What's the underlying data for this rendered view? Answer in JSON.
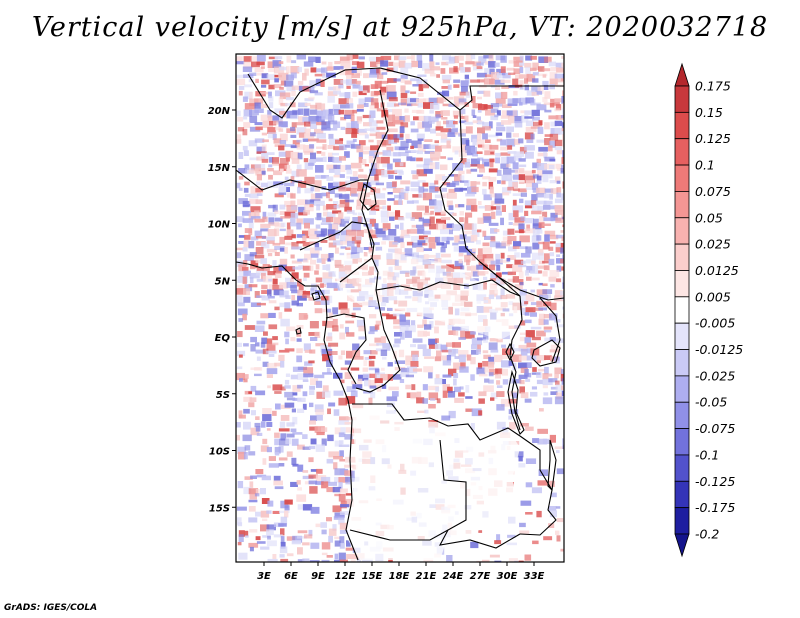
{
  "title": "Vertical velocity [m/s] at 925hPa, VT: 2020032718",
  "credit": "GrADS: IGES/COLA",
  "map": {
    "region": "Central Africa",
    "lat_labels": [
      "20N",
      "15N",
      "10N",
      "5N",
      "EQ",
      "5S",
      "10S",
      "15S"
    ],
    "lat_values": [
      20,
      15,
      10,
      5,
      0,
      -5,
      -10,
      -15
    ],
    "lon_labels": [
      "3E",
      "6E",
      "9E",
      "12E",
      "15E",
      "18E",
      "21E",
      "24E",
      "27E",
      "30E",
      "33E"
    ],
    "lon_values": [
      3,
      6,
      9,
      12,
      15,
      18,
      21,
      24,
      27,
      30,
      33
    ]
  },
  "colorbar": {
    "labels": [
      "0.175",
      "0.15",
      "0.125",
      "0.1",
      "0.075",
      "0.05",
      "0.025",
      "0.0125",
      "0.005",
      "-0.005",
      "-0.0125",
      "-0.025",
      "-0.05",
      "-0.075",
      "-0.1",
      "-0.125",
      "-0.175",
      "-0.2"
    ],
    "colors": [
      "#b4282d",
      "#c8383c",
      "#dc4c4c",
      "#e66060",
      "#ee7a78",
      "#f49694",
      "#f8b2b0",
      "#fbcecc",
      "#fde6e4",
      "#ffffff",
      "#e4e4fb",
      "#cacaf6",
      "#aeaef0",
      "#9090e8",
      "#7272dc",
      "#5252cc",
      "#3434b8",
      "#1e1ea0",
      "#14148c"
    ]
  }
}
